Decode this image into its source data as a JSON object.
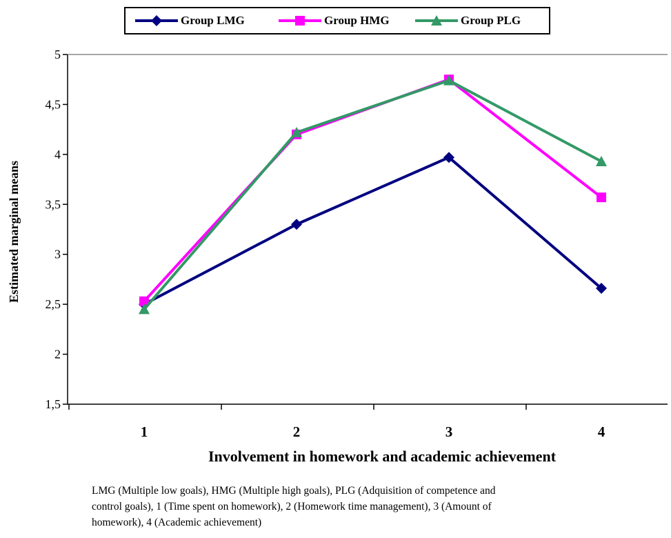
{
  "chart_data": {
    "type": "line",
    "title": "",
    "xlabel": "Involvement in homework and academic achievement",
    "ylabel": "Estimated marginal means",
    "categories": [
      "1",
      "2",
      "3",
      "4"
    ],
    "ylim": [
      1.5,
      5
    ],
    "yticks": [
      "1,5",
      "2",
      "2,5",
      "3",
      "3,5",
      "4",
      "4,5",
      "5"
    ],
    "ytick_values": [
      1.5,
      2,
      2.5,
      3,
      3.5,
      4,
      4.5,
      5
    ],
    "grid": false,
    "legend_position": "top",
    "series": [
      {
        "name": "Group LMG",
        "values": [
          2.5,
          3.3,
          3.97,
          2.66
        ],
        "color": "#000080",
        "marker": "diamond"
      },
      {
        "name": "Group HMG",
        "values": [
          2.53,
          4.2,
          4.75,
          3.57
        ],
        "color": "#ff00ff",
        "marker": "square"
      },
      {
        "name": "Group PLG",
        "values": [
          2.45,
          4.22,
          4.74,
          3.93
        ],
        "color": "#339966",
        "marker": "triangle"
      }
    ]
  },
  "caption": {
    "line1": "LMG (Multiple low goals), HMG (Multiple high goals), PLG (Adquisition of competence and",
    "line2": "control goals), 1 (Time spent on homework), 2 (Homework time management), 3 (Amount of",
    "line3": "homework), 4 (Academic achievement)"
  }
}
